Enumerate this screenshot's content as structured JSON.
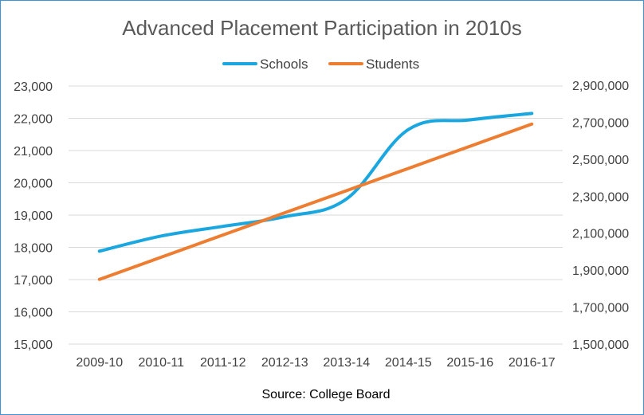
{
  "chart_data": {
    "type": "line",
    "title": "Advanced Placement Participation in 2010s",
    "source_note": "Source: College Board",
    "categories": [
      "2009-10",
      "2010-11",
      "2011-12",
      "2012-13",
      "2013-14",
      "2014-15",
      "2015-16",
      "2016-17"
    ],
    "series": [
      {
        "name": "Schools",
        "axis": "left",
        "color": "#1aa7e0",
        "values": [
          17880,
          18350,
          18650,
          18950,
          19500,
          21650,
          21950,
          22150
        ]
      },
      {
        "name": "Students",
        "axis": "right",
        "color": "#ed7d31",
        "values": [
          1850000,
          1970000,
          2090000,
          2210000,
          2330000,
          2450000,
          2570000,
          2690000
        ]
      }
    ],
    "y_left": {
      "min": 15000,
      "max": 23000,
      "step": 1000,
      "tick_labels": [
        "15,000",
        "16,000",
        "17,000",
        "18,000",
        "19,000",
        "20,000",
        "21,000",
        "22,000",
        "23,000"
      ]
    },
    "y_right": {
      "min": 1500000,
      "max": 2900000,
      "step": 200000,
      "tick_labels": [
        "1,500,000",
        "1,700,000",
        "1,900,000",
        "2,100,000",
        "2,300,000",
        "2,500,000",
        "2,700,000",
        "2,900,000"
      ]
    },
    "grid": true,
    "legend_position": "top"
  }
}
